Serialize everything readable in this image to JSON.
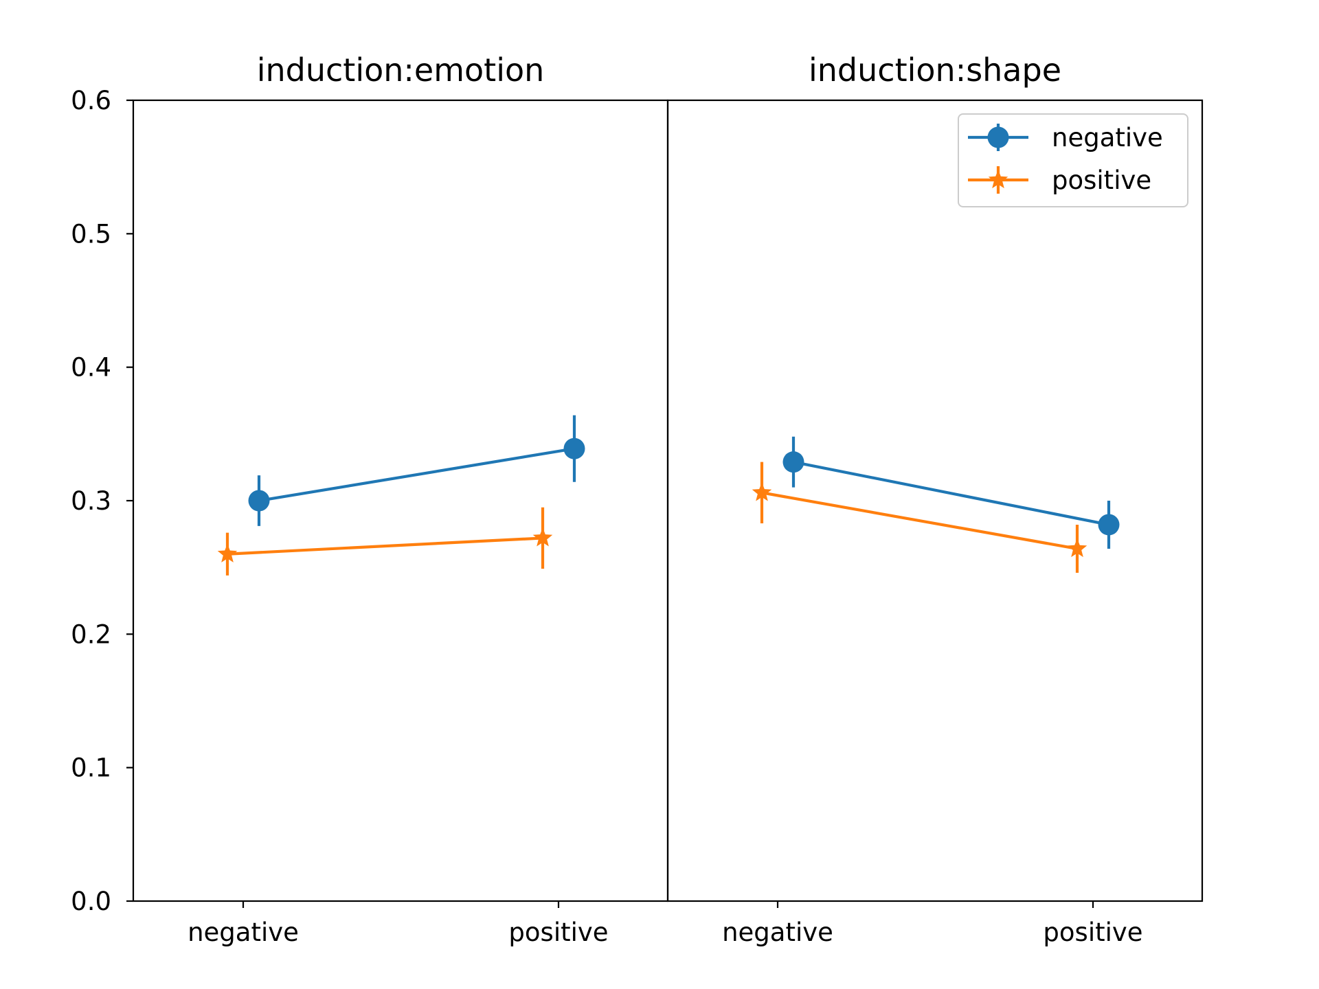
{
  "chart_data": {
    "type": "line",
    "ylim": [
      0.0,
      0.6
    ],
    "yticks": [
      "0.0",
      "0.1",
      "0.2",
      "0.3",
      "0.4",
      "0.5",
      "0.6"
    ],
    "categories": [
      "negative",
      "positive"
    ],
    "legend": {
      "placement": "top-right",
      "entries": [
        "negative",
        "positive"
      ]
    },
    "colors": {
      "negative": "#1f77b4",
      "positive": "#ff7f0e"
    },
    "markers": {
      "negative": "circle",
      "positive": "star"
    },
    "panels": [
      {
        "title": "induction:emotion",
        "series": [
          {
            "name": "negative",
            "values": [
              0.3,
              0.339
            ],
            "errors": [
              0.019,
              0.025
            ]
          },
          {
            "name": "positive",
            "values": [
              0.26,
              0.272
            ],
            "errors": [
              0.016,
              0.023
            ]
          }
        ]
      },
      {
        "title": "induction:shape",
        "series": [
          {
            "name": "negative",
            "values": [
              0.329,
              0.282
            ],
            "errors": [
              0.019,
              0.018
            ]
          },
          {
            "name": "positive",
            "values": [
              0.306,
              0.264
            ],
            "errors": [
              0.023,
              0.018
            ]
          }
        ]
      }
    ]
  }
}
